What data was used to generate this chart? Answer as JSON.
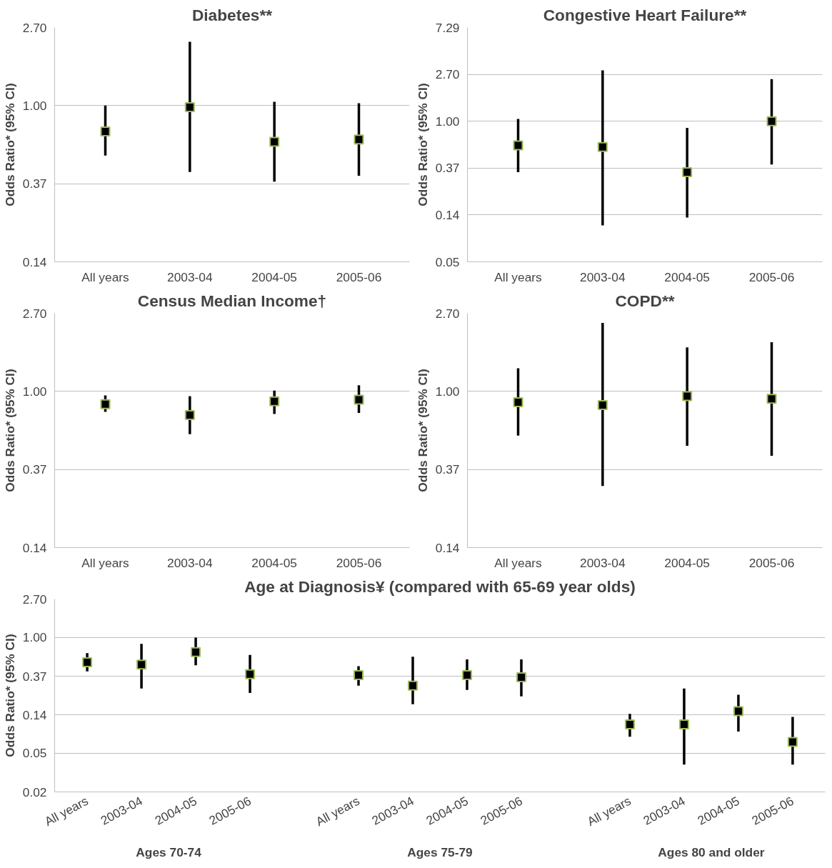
{
  "chart_data": [
    {
      "type": "scatter",
      "title": "Diabetes**",
      "ylabel": "Odds Ratio* (95% CI)",
      "categories": [
        "All years",
        "2003-04",
        "2004-05",
        "2005-06"
      ],
      "color": "#000000",
      "marker": "square",
      "grid": "y",
      "log": "y",
      "values": [
        0.72,
        0.98,
        0.63,
        0.65
      ],
      "errors": [
        [
          0.53,
          1.0
        ],
        [
          0.43,
          2.25
        ],
        [
          0.38,
          1.05
        ],
        [
          0.41,
          1.03
        ]
      ],
      "ylim": [
        0.137,
        2.7
      ],
      "yticks": [
        {
          "value": 0.137,
          "label": "0.14"
        },
        {
          "value": 0.37,
          "label": "0.37"
        },
        {
          "value": 1,
          "label": "1.00"
        },
        {
          "value": 2.7,
          "label": "2.70"
        }
      ]
    },
    {
      "type": "scatter",
      "title": "Congestive Heart Failure**",
      "ylabel": "Odds Ratio* (95% CI)",
      "categories": [
        "All years",
        "2003-04",
        "2004-05",
        "2005-06"
      ],
      "color": "#000000",
      "marker": "square",
      "grid": "y",
      "log": "y",
      "values": [
        0.6,
        0.58,
        0.34,
        1.0
      ],
      "errors": [
        [
          0.34,
          1.05
        ],
        [
          0.11,
          2.94
        ],
        [
          0.13,
          0.87
        ],
        [
          0.4,
          2.44
        ]
      ],
      "ylim": [
        0.0508,
        7.29
      ],
      "yticks": [
        {
          "value": 0.0508,
          "label": "0.05"
        },
        {
          "value": 0.137,
          "label": "0.14"
        },
        {
          "value": 0.37,
          "label": "0.37"
        },
        {
          "value": 1,
          "label": "1.00"
        },
        {
          "value": 2.7,
          "label": "2.70"
        },
        {
          "value": 7.29,
          "label": "7.29"
        }
      ]
    },
    {
      "type": "scatter",
      "title": "Census Median Income†",
      "ylabel": "Odds Ratio* (95% CI)",
      "categories": [
        "All years",
        "2003-04",
        "2004-05",
        "2005-06"
      ],
      "color": "#000000",
      "marker": "square",
      "grid": "y",
      "log": "y",
      "values": [
        0.85,
        0.74,
        0.88,
        0.9
      ],
      "errors": [
        [
          0.77,
          0.95
        ],
        [
          0.58,
          0.94
        ],
        [
          0.75,
          1.01
        ],
        [
          0.76,
          1.08
        ]
      ],
      "ylim": [
        0.137,
        2.7
      ],
      "yticks": [
        {
          "value": 0.137,
          "label": "0.14"
        },
        {
          "value": 0.37,
          "label": "0.37"
        },
        {
          "value": 1,
          "label": "1.00"
        },
        {
          "value": 2.7,
          "label": "2.70"
        }
      ]
    },
    {
      "type": "scatter",
      "title": "COPD**",
      "ylabel": "Odds Ratio* (95% CI)",
      "categories": [
        "All years",
        "2003-04",
        "2004-05",
        "2005-06"
      ],
      "color": "#000000",
      "marker": "square",
      "grid": "y",
      "log": "y",
      "values": [
        0.87,
        0.84,
        0.94,
        0.91
      ],
      "errors": [
        [
          0.57,
          1.34
        ],
        [
          0.3,
          2.39
        ],
        [
          0.5,
          1.75
        ],
        [
          0.44,
          1.87
        ]
      ],
      "ylim": [
        0.137,
        2.7
      ],
      "yticks": [
        {
          "value": 0.137,
          "label": "0.14"
        },
        {
          "value": 0.37,
          "label": "0.37"
        },
        {
          "value": 1,
          "label": "1.00"
        },
        {
          "value": 2.7,
          "label": "2.70"
        }
      ]
    },
    {
      "type": "scatter",
      "title": "Age at Diagnosis¥ (compared with 65-69 year olds)",
      "ylabel": "Odds Ratio* (95% CI)",
      "color": "#000000",
      "marker": "square",
      "grid": "y",
      "log": "y",
      "categories": [
        "All years",
        "2003-04",
        "2004-05",
        "2005-06",
        null,
        "All years",
        "2003-04",
        "2004-05",
        "2005-06",
        null,
        "All years",
        "2003-04",
        "2004-05",
        "2005-06"
      ],
      "values": [
        0.53,
        0.5,
        0.69,
        0.39,
        null,
        0.38,
        0.29,
        0.38,
        0.36,
        null,
        0.107,
        0.107,
        0.15,
        0.068
      ],
      "errors": [
        [
          0.42,
          0.67
        ],
        [
          0.27,
          0.85
        ],
        [
          0.49,
          1.0
        ],
        [
          0.24,
          0.64
        ],
        null,
        [
          0.29,
          0.48
        ],
        [
          0.18,
          0.61
        ],
        [
          0.26,
          0.57
        ],
        [
          0.22,
          0.57
        ],
        null,
        [
          0.078,
          0.14
        ],
        [
          0.038,
          0.27
        ],
        [
          0.089,
          0.23
        ],
        [
          0.038,
          0.13
        ]
      ],
      "annotations": [
        "Ages 70-74",
        "Ages 75-79",
        "Ages 80 and older"
      ],
      "ylim": [
        0.0188,
        2.7
      ],
      "yticks": [
        {
          "value": 0.0188,
          "label": "0.02"
        },
        {
          "value": 0.0508,
          "label": "0.05"
        },
        {
          "value": 0.137,
          "label": "0.14"
        },
        {
          "value": 0.37,
          "label": "0.37"
        },
        {
          "value": 1,
          "label": "1.00"
        },
        {
          "value": 2.7,
          "label": "2.70"
        }
      ]
    }
  ]
}
